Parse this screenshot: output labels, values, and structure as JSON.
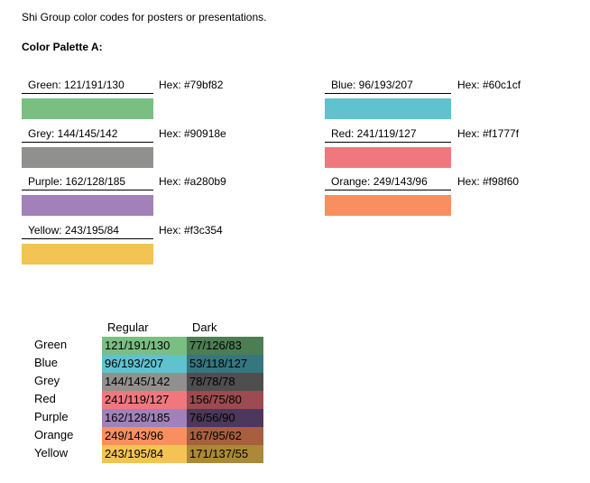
{
  "intro": "Shi Group color codes for posters or presentations.",
  "palette_title": "Color Palette A:",
  "swatches": {
    "green": {
      "label": "Green:  121/191/130",
      "hex": "Hex: #79bf82",
      "color": "#79bf82"
    },
    "blue": {
      "label": "Blue:  96/193/207",
      "hex": "Hex: #60c1cf",
      "color": "#60c1cf"
    },
    "grey": {
      "label": "Grey:  144/145/142",
      "hex": "Hex: #90918e",
      "color": "#90918e"
    },
    "red": {
      "label": "Red:  241/119/127",
      "hex": "Hex: #f1777f",
      "color": "#f1777f"
    },
    "purple": {
      "label": "Purple:  162/128/185",
      "hex": "Hex: #a280b9",
      "color": "#a280b9"
    },
    "orange": {
      "label": "Orange:  249/143/96",
      "hex": "Hex: #f98f60",
      "color": "#f98f60"
    },
    "yellow": {
      "label": "Yellow: 243/195/84",
      "hex": "Hex: #f3c354",
      "color": "#f3c354"
    }
  },
  "table": {
    "headers": {
      "regular": "Regular",
      "dark": "Dark"
    },
    "rows": [
      {
        "name": "Green",
        "regular": "121/191/130",
        "dark": "77/126/83",
        "reg_color": "#79bf82",
        "dark_color": "#4d7e53"
      },
      {
        "name": "Blue",
        "regular": "96/193/207",
        "dark": "53/118/127",
        "reg_color": "#60c1cf",
        "dark_color": "#35767f"
      },
      {
        "name": "Grey",
        "regular": "144/145/142",
        "dark": "78/78/78",
        "reg_color": "#90918e",
        "dark_color": "#4e4e4e"
      },
      {
        "name": "Red",
        "regular": "241/119/127",
        "dark": "156/75/80",
        "reg_color": "#f1777f",
        "dark_color": "#9c4b50"
      },
      {
        "name": "Purple",
        "regular": "162/128/185",
        "dark": "76/56/90",
        "reg_color": "#a280b9",
        "dark_color": "#4c385a"
      },
      {
        "name": "Orange",
        "regular": "249/143/96",
        "dark": "167/95/62",
        "reg_color": "#f98f60",
        "dark_color": "#a75f3e"
      },
      {
        "name": "Yellow",
        "regular": "243/195/84",
        "dark": "171/137/55",
        "reg_color": "#f3c354",
        "dark_color": "#ab8937"
      }
    ]
  }
}
